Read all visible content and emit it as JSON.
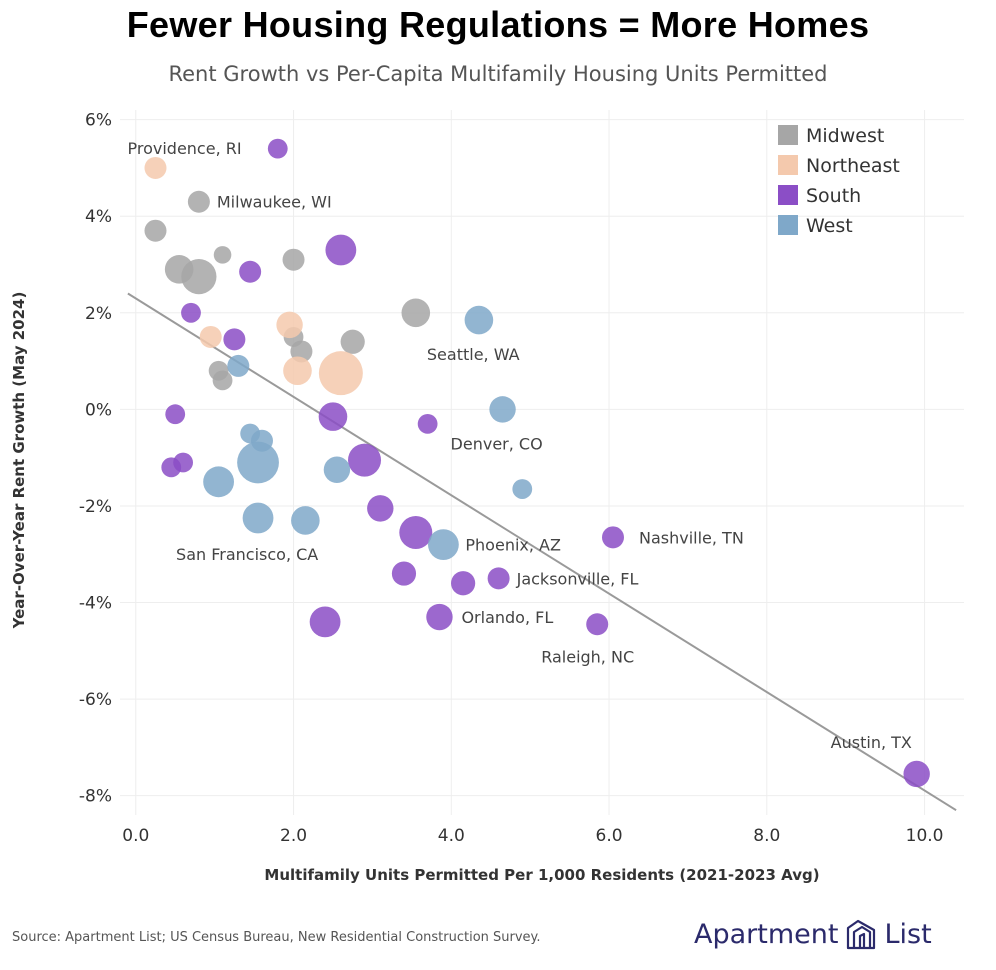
{
  "header": {
    "headline": "Fewer Housing Regulations = More Homes"
  },
  "chart_data": {
    "type": "scatter",
    "title": "Rent Growth vs Per-Capita Multifamily Housing Units Permitted",
    "xlabel": "Multifamily Units Permitted Per 1,000 Residents (2021-2023 Avg)",
    "ylabel": "Year-Over-Year Rent Growth (May 2024)",
    "xlim": [
      -0.2,
      10.5
    ],
    "ylim": [
      -8.4,
      6.2
    ],
    "x_ticks": [
      0,
      2,
      4,
      6,
      8,
      10
    ],
    "x_tick_labels": [
      "0.0",
      "2.0",
      "4.0",
      "6.0",
      "8.0",
      "10.0"
    ],
    "y_ticks": [
      6,
      4,
      2,
      0,
      -2,
      -4,
      -6,
      -8
    ],
    "y_tick_labels": [
      "6%",
      "4%",
      "2%",
      "0%",
      "-2%",
      "-4%",
      "-6%",
      "-8%"
    ],
    "grid": true,
    "legend_position": "top-right",
    "series": [
      {
        "name": "Midwest",
        "color": "#a6a6a6",
        "points": [
          {
            "x": 0.8,
            "y": 4.3,
            "size": 1.0,
            "label": "Milwaukee, WI"
          },
          {
            "x": 0.25,
            "y": 3.7,
            "size": 1.0
          },
          {
            "x": 1.1,
            "y": 3.2,
            "size": 0.8
          },
          {
            "x": 2.0,
            "y": 3.1,
            "size": 1.0
          },
          {
            "x": 0.55,
            "y": 2.9,
            "size": 1.3
          },
          {
            "x": 0.8,
            "y": 2.75,
            "size": 1.6
          },
          {
            "x": 3.55,
            "y": 2.0,
            "size": 1.3
          },
          {
            "x": 2.0,
            "y": 1.5,
            "size": 0.9
          },
          {
            "x": 2.75,
            "y": 1.4,
            "size": 1.1
          },
          {
            "x": 2.1,
            "y": 1.2,
            "size": 1.0
          },
          {
            "x": 1.05,
            "y": 0.8,
            "size": 0.9
          },
          {
            "x": 1.1,
            "y": 0.6,
            "size": 0.9
          }
        ]
      },
      {
        "name": "Northeast",
        "color": "#f4c9ad",
        "points": [
          {
            "x": 0.25,
            "y": 5.0,
            "size": 1.0,
            "label": "Providence, RI"
          },
          {
            "x": 1.95,
            "y": 1.75,
            "size": 1.2
          },
          {
            "x": 0.95,
            "y": 1.5,
            "size": 1.0
          },
          {
            "x": 2.05,
            "y": 0.8,
            "size": 1.3
          },
          {
            "x": 2.6,
            "y": 0.75,
            "size": 2.0
          }
        ]
      },
      {
        "name": "South",
        "color": "#8b4ec6",
        "points": [
          {
            "x": 1.8,
            "y": 5.4,
            "size": 0.9
          },
          {
            "x": 2.6,
            "y": 3.3,
            "size": 1.4
          },
          {
            "x": 1.45,
            "y": 2.85,
            "size": 1.0
          },
          {
            "x": 0.7,
            "y": 2.0,
            "size": 0.9
          },
          {
            "x": 1.25,
            "y": 1.45,
            "size": 1.0
          },
          {
            "x": 0.5,
            "y": -0.1,
            "size": 0.9
          },
          {
            "x": 2.5,
            "y": -0.15,
            "size": 1.3
          },
          {
            "x": 3.7,
            "y": -0.3,
            "size": 0.9
          },
          {
            "x": 0.45,
            "y": -1.2,
            "size": 0.9
          },
          {
            "x": 0.6,
            "y": -1.1,
            "size": 0.9
          },
          {
            "x": 2.9,
            "y": -1.05,
            "size": 1.5
          },
          {
            "x": 3.1,
            "y": -2.05,
            "size": 1.2
          },
          {
            "x": 3.55,
            "y": -2.55,
            "size": 1.5
          },
          {
            "x": 6.05,
            "y": -2.65,
            "size": 1.0,
            "label": "Nashville, TN"
          },
          {
            "x": 3.4,
            "y": -3.4,
            "size": 1.1
          },
          {
            "x": 4.15,
            "y": -3.6,
            "size": 1.1
          },
          {
            "x": 4.6,
            "y": -3.5,
            "size": 1.0,
            "label": "Jacksonville, FL"
          },
          {
            "x": 2.4,
            "y": -4.4,
            "size": 1.4
          },
          {
            "x": 3.85,
            "y": -4.3,
            "size": 1.2,
            "label": "Orlando, FL"
          },
          {
            "x": 5.85,
            "y": -4.45,
            "size": 1.0,
            "label": "Raleigh, NC"
          },
          {
            "x": 9.9,
            "y": -7.55,
            "size": 1.2,
            "label": "Austin, TX"
          }
        ]
      },
      {
        "name": "West",
        "color": "#7fa8c9",
        "points": [
          {
            "x": 4.35,
            "y": 1.85,
            "size": 1.3,
            "label": "Seattle, WA"
          },
          {
            "x": 1.3,
            "y": 0.9,
            "size": 1.0
          },
          {
            "x": 4.65,
            "y": 0.0,
            "size": 1.2,
            "label": "Denver, CO"
          },
          {
            "x": 1.45,
            "y": -0.5,
            "size": 0.9
          },
          {
            "x": 1.6,
            "y": -0.65,
            "size": 1.0
          },
          {
            "x": 1.55,
            "y": -1.1,
            "size": 1.9
          },
          {
            "x": 2.55,
            "y": -1.25,
            "size": 1.2
          },
          {
            "x": 1.05,
            "y": -1.5,
            "size": 1.4
          },
          {
            "x": 4.9,
            "y": -1.65,
            "size": 0.9
          },
          {
            "x": 1.55,
            "y": -2.25,
            "size": 1.4,
            "label": "San Francisco, CA"
          },
          {
            "x": 2.15,
            "y": -2.3,
            "size": 1.3
          },
          {
            "x": 3.9,
            "y": -2.8,
            "size": 1.4,
            "label": "Phoenix, AZ"
          }
        ]
      }
    ],
    "trendline": {
      "x1": -0.1,
      "y1": 2.4,
      "x2": 10.4,
      "y2": -8.3,
      "color": "#9a9a9a"
    }
  },
  "footer": {
    "source": "Source: Apartment List; US Census Bureau, New Residential Construction Survey.",
    "brand_left": "Apartment",
    "brand_right": "List",
    "brand_color": "#2b2a6b"
  }
}
